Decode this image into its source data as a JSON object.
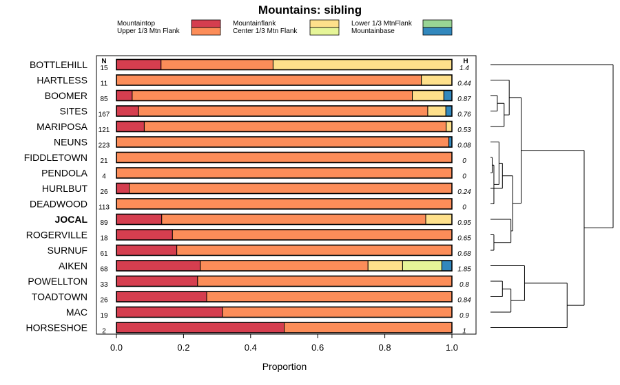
{
  "chart_data": {
    "type": "bar",
    "orientation": "horizontal",
    "stacked": true,
    "title": "Mountains: sibling",
    "xlabel": "Proportion",
    "xlim": [
      0,
      1
    ],
    "xticks": [
      0,
      0.2,
      0.4,
      0.6,
      0.8,
      1
    ],
    "xtick_labels": [
      "0.0",
      "0.2",
      "0.4",
      "0.6",
      "0.8",
      "1.0"
    ],
    "n_header": "N",
    "h_header": "H",
    "legend": [
      {
        "name": "Mountaintop",
        "color": "#d53e4f"
      },
      {
        "name": "Upper 1/3 Mtn Flank",
        "color": "#fc8d59"
      },
      {
        "name": "Mountainflank",
        "color": "#fee08b"
      },
      {
        "name": "Center 1/3 Mtn Flank",
        "color": "#e6f598"
      },
      {
        "name": "Lower 1/3 MtnFlank",
        "color": "#99d594"
      },
      {
        "name": "Mountainbase",
        "color": "#3288bd"
      }
    ],
    "categories": [
      "BOTTLEHILL",
      "HARTLESS",
      "BOOMER",
      "SITES",
      "MARIPOSA",
      "NEUNS",
      "FIDDLETOWN",
      "PENDOLA",
      "HURLBUT",
      "DEADWOOD",
      "JOCAL",
      "ROGERVILLE",
      "SURNUF",
      "AIKEN",
      "POWELLTON",
      "TOADTOWN",
      "MAC",
      "HORSESHOE"
    ],
    "highlight": "JOCAL",
    "N": [
      "15",
      "11",
      "85",
      "167",
      "121",
      "223",
      "21",
      "4",
      "26",
      "113",
      "89",
      "18",
      "61",
      "68",
      "33",
      "26",
      "19",
      "2"
    ],
    "H": [
      "1.4",
      "0.44",
      "0.87",
      "0.76",
      "0.53",
      "0.08",
      "0",
      "0",
      "0.24",
      "0",
      "0.95",
      "0.65",
      "0.68",
      "1.85",
      "0.8",
      "0.84",
      "0.9",
      "1"
    ],
    "series": [
      {
        "name": "Mountaintop",
        "values": [
          0.133,
          0,
          0.047,
          0.066,
          0.083,
          0,
          0,
          0,
          0.038,
          0,
          0.135,
          0.167,
          0.18,
          0.25,
          0.242,
          0.269,
          0.316,
          0.5
        ]
      },
      {
        "name": "Upper 1/3 Mtn Flank",
        "values": [
          0.334,
          0.909,
          0.835,
          0.862,
          0.9,
          0.991,
          1,
          1,
          0.962,
          1,
          0.787,
          0.833,
          0.82,
          0.5,
          0.758,
          0.731,
          0.684,
          0.5
        ]
      },
      {
        "name": "Mountainflank",
        "values": [
          0.533,
          0.091,
          0.094,
          0.054,
          0.017,
          0,
          0,
          0,
          0,
          0,
          0.078,
          0,
          0,
          0.103,
          0,
          0,
          0,
          0
        ]
      },
      {
        "name": "Center 1/3 Mtn Flank",
        "values": [
          0,
          0,
          0,
          0,
          0,
          0,
          0,
          0,
          0,
          0,
          0,
          0,
          0,
          0.117,
          0,
          0,
          0,
          0
        ]
      },
      {
        "name": "Lower 1/3 MtnFlank",
        "values": [
          0,
          0,
          0,
          0,
          0,
          0,
          0,
          0,
          0,
          0,
          0,
          0,
          0,
          0,
          0,
          0,
          0,
          0
        ]
      },
      {
        "name": "Mountainbase",
        "values": [
          0,
          0,
          0.024,
          0.018,
          0,
          0.009,
          0,
          0,
          0,
          0,
          0,
          0,
          0,
          0.03,
          0,
          0,
          0,
          0
        ]
      }
    ],
    "dendrogram": {
      "leaf_order": [
        "BOTTLEHILL",
        "HARTLESS",
        "BOOMER",
        "SITES",
        "MARIPOSA",
        "NEUNS",
        "FIDDLETOWN",
        "PENDOLA",
        "HURLBUT",
        "DEADWOOD",
        "JOCAL",
        "ROGERVILLE",
        "SURNUF",
        "AIKEN",
        "POWELLTON",
        "TOADTOWN",
        "MAC",
        "HORSESHOE"
      ],
      "merges": [
        [
          -7,
          -8,
          0.01
        ],
        [
          1,
          -10,
          0.02
        ],
        [
          -12,
          -13,
          0.02
        ],
        [
          -3,
          -4,
          0.04
        ],
        [
          -6,
          2,
          0.05
        ],
        [
          -9,
          5,
          0.07
        ],
        [
          -15,
          -16,
          0.07
        ],
        [
          -5,
          4,
          0.08
        ],
        [
          -2,
          8,
          0.11
        ],
        [
          7,
          -17,
          0.12
        ],
        [
          -11,
          3,
          0.12
        ],
        [
          6,
          11,
          0.13
        ],
        [
          -14,
          10,
          0.2
        ],
        [
          13,
          -18,
          0.45
        ],
        [
          9,
          12,
          0.18
        ],
        [
          15,
          14,
          0.55
        ],
        [
          -1,
          16,
          0.72
        ]
      ]
    }
  }
}
